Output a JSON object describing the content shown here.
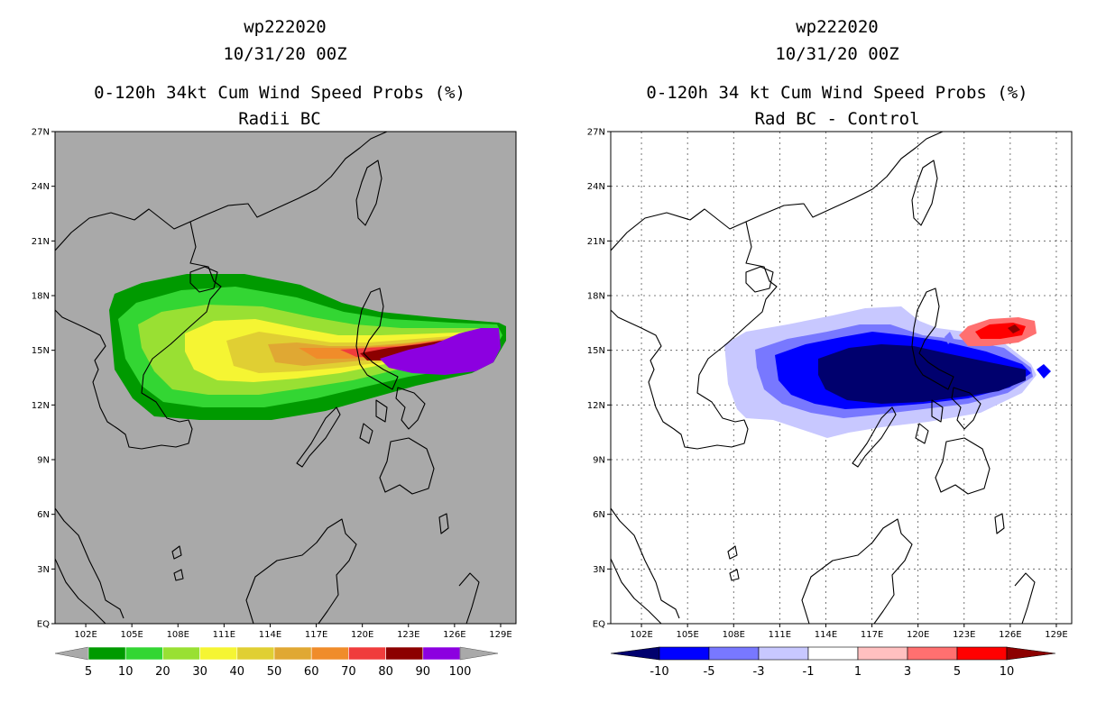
{
  "chart_data": [
    {
      "type": "heatmap",
      "title_lines": [
        "wp222020",
        "10/31/20 00Z",
        "0-120h 34kt Cum Wind Speed Probs (%)",
        "Radii BC"
      ],
      "x_ticks": [
        "102E",
        "105E",
        "108E",
        "111E",
        "114E",
        "117E",
        "120E",
        "123E",
        "126E",
        "129E"
      ],
      "y_ticks": [
        "EQ",
        "3N",
        "6N",
        "9N",
        "12N",
        "15N",
        "18N",
        "21N",
        "24N",
        "27N"
      ],
      "xlim": [
        100,
        130
      ],
      "ylim": [
        0,
        27
      ],
      "colorbar_labels": [
        "5",
        "10",
        "20",
        "30",
        "40",
        "50",
        "60",
        "70",
        "80",
        "90",
        "100"
      ],
      "colorbar_colors": [
        "#009a00",
        "#33d633",
        "#99e033",
        "#f5f533",
        "#e0cf33",
        "#e0a833",
        "#f08c2a",
        "#f03c3c",
        "#8c0000",
        "#8c00e0"
      ],
      "background_color": "#a9a9a9"
    },
    {
      "type": "heatmap",
      "title_lines": [
        "wp222020",
        "10/31/20 00Z",
        "0-120h 34 kt Cum Wind Speed Probs (%)",
        "Rad BC - Control"
      ],
      "x_ticks": [
        "102E",
        "105E",
        "108E",
        "111E",
        "114E",
        "117E",
        "120E",
        "123E",
        "126E",
        "129E"
      ],
      "y_ticks": [
        "EQ",
        "3N",
        "6N",
        "9N",
        "12N",
        "15N",
        "18N",
        "21N",
        "24N",
        "27N"
      ],
      "xlim": [
        100,
        130
      ],
      "ylim": [
        0,
        27
      ],
      "colorbar_labels": [
        "-10",
        "-5",
        "-3",
        "-1",
        "1",
        "3",
        "5",
        "10"
      ],
      "colorbar_colors": [
        "#00006e",
        "#0000ff",
        "#7878ff",
        "#c8c8ff",
        "#ffffff",
        "#ffc0c0",
        "#ff7070",
        "#ff0000",
        "#8c0000"
      ],
      "background_color": "#ffffff"
    }
  ]
}
